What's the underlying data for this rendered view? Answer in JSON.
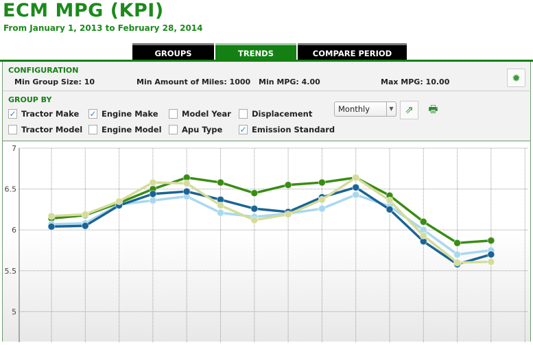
{
  "header": {
    "title": "ECM MPG (KPI)",
    "subtitle": "From January 1, 2013 to February 28, 2014"
  },
  "tabs": [
    {
      "label": "GROUPS",
      "active": false
    },
    {
      "label": "TRENDS",
      "active": true
    },
    {
      "label": "COMPARE PERIOD",
      "active": false
    }
  ],
  "configuration": {
    "heading": "CONFIGURATION",
    "min_group_size": "Min Group Size: 10",
    "min_miles": "Min Amount of Miles: 1000",
    "min_mpg": "Min MPG: 4.00",
    "max_mpg": "Max MPG: 10.00",
    "settings_icon": "gear-icon"
  },
  "group_by": {
    "heading": "GROUP BY",
    "options": [
      {
        "label": "Tractor Make",
        "checked": true
      },
      {
        "label": "Engine Make",
        "checked": true
      },
      {
        "label": "Model Year",
        "checked": false
      },
      {
        "label": "Displacement",
        "checked": false
      },
      {
        "label": "Tractor Model",
        "checked": false
      },
      {
        "label": "Engine Model",
        "checked": false
      },
      {
        "label": "Apu Type",
        "checked": false
      },
      {
        "label": "Emission Standard",
        "checked": true
      }
    ],
    "period": "Monthly",
    "export_icon": "export-icon",
    "print_icon": "print-icon"
  },
  "chart_data": {
    "type": "line",
    "ylim": [
      4.62,
      7
    ],
    "yticks": [
      "7",
      "6.5",
      "6",
      "5.5",
      "5"
    ],
    "grid": true,
    "x_count": 14,
    "series": [
      {
        "color": "#3a8c14",
        "values": [
          6.14,
          6.18,
          6.33,
          6.5,
          6.64,
          6.58,
          6.45,
          6.55,
          6.58,
          6.64,
          6.42,
          6.1,
          5.84,
          5.87
        ]
      },
      {
        "color": "#a8d8f0",
        "values": [
          6.07,
          6.08,
          6.31,
          6.36,
          6.41,
          6.21,
          6.16,
          6.2,
          6.26,
          6.43,
          6.29,
          6.0,
          5.7,
          5.75
        ]
      },
      {
        "color": "#1a6496",
        "values": [
          6.04,
          6.05,
          6.3,
          6.44,
          6.47,
          6.37,
          6.26,
          6.22,
          6.4,
          6.52,
          6.25,
          5.86,
          5.58,
          5.7
        ]
      },
      {
        "color": "#d4dc9a",
        "values": [
          6.17,
          6.19,
          6.35,
          6.58,
          6.57,
          6.3,
          6.12,
          6.19,
          6.37,
          6.64,
          6.36,
          5.93,
          5.6,
          5.61
        ]
      }
    ]
  }
}
